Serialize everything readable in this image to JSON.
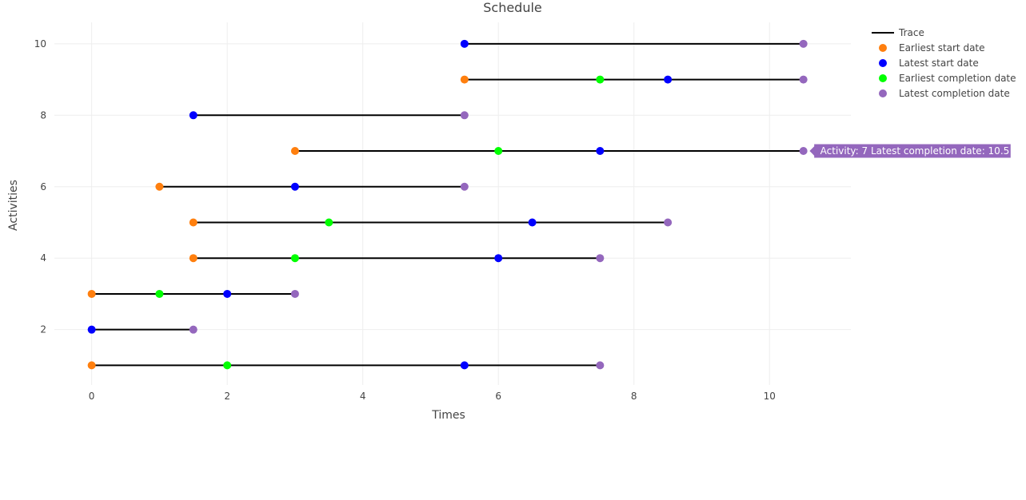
{
  "chart_data": {
    "type": "scatter",
    "title": "Schedule",
    "xlabel": "Times",
    "ylabel": "Activities",
    "xlim": [
      -0.55,
      11.2
    ],
    "ylim": [
      0.45,
      10.6
    ],
    "xticks": [
      0,
      2,
      4,
      6,
      8,
      10
    ],
    "yticks": [
      2,
      4,
      6,
      8,
      10
    ],
    "grid": true,
    "legend_position": "top-right",
    "line_trace": {
      "name": "Trace",
      "color": "#000000",
      "segments": [
        {
          "activity": 1,
          "start": 0,
          "end": 7.5
        },
        {
          "activity": 2,
          "start": 0,
          "end": 1.5
        },
        {
          "activity": 3,
          "start": 0,
          "end": 3
        },
        {
          "activity": 4,
          "start": 1.5,
          "end": 7.5
        },
        {
          "activity": 5,
          "start": 1.5,
          "end": 8.5
        },
        {
          "activity": 6,
          "start": 1,
          "end": 5.5
        },
        {
          "activity": 7,
          "start": 3,
          "end": 10.5
        },
        {
          "activity": 8,
          "start": 1.5,
          "end": 5.5
        },
        {
          "activity": 9,
          "start": 5.5,
          "end": 10.5
        },
        {
          "activity": 10,
          "start": 5.5,
          "end": 10.5
        }
      ]
    },
    "series": [
      {
        "name": "Earliest start date",
        "color": "#ff7f0e",
        "points": [
          {
            "x": 0,
            "y": 1
          },
          {
            "x": 0,
            "y": 3
          },
          {
            "x": 1.5,
            "y": 4
          },
          {
            "x": 1.5,
            "y": 5
          },
          {
            "x": 1,
            "y": 6
          },
          {
            "x": 3,
            "y": 7
          },
          {
            "x": 5.5,
            "y": 9
          }
        ]
      },
      {
        "name": "Latest start date",
        "color": "#0000ff",
        "points": [
          {
            "x": 5.5,
            "y": 1
          },
          {
            "x": 0,
            "y": 2
          },
          {
            "x": 2,
            "y": 3
          },
          {
            "x": 6,
            "y": 4
          },
          {
            "x": 6.5,
            "y": 5
          },
          {
            "x": 3,
            "y": 6
          },
          {
            "x": 7.5,
            "y": 7
          },
          {
            "x": 1.5,
            "y": 8
          },
          {
            "x": 8.5,
            "y": 9
          },
          {
            "x": 5.5,
            "y": 10
          }
        ]
      },
      {
        "name": "Earliest completion date",
        "color": "#00ff00",
        "points": [
          {
            "x": 2,
            "y": 1
          },
          {
            "x": 1,
            "y": 3
          },
          {
            "x": 3,
            "y": 4
          },
          {
            "x": 3.5,
            "y": 5
          },
          {
            "x": 6,
            "y": 7
          },
          {
            "x": 7.5,
            "y": 9
          }
        ]
      },
      {
        "name": "Latest completion date",
        "color": "#9467bd",
        "points": [
          {
            "x": 7.5,
            "y": 1
          },
          {
            "x": 1.5,
            "y": 2
          },
          {
            "x": 3,
            "y": 3
          },
          {
            "x": 7.5,
            "y": 4
          },
          {
            "x": 8.5,
            "y": 5
          },
          {
            "x": 5.5,
            "y": 6
          },
          {
            "x": 10.5,
            "y": 7
          },
          {
            "x": 5.5,
            "y": 8
          },
          {
            "x": 10.5,
            "y": 9
          },
          {
            "x": 10.5,
            "y": 10
          }
        ]
      }
    ],
    "tooltip": {
      "text": "Activity:  7 Latest completion date:  10.5",
      "x": 10.5,
      "y": 7,
      "color": "#9467bd"
    }
  }
}
